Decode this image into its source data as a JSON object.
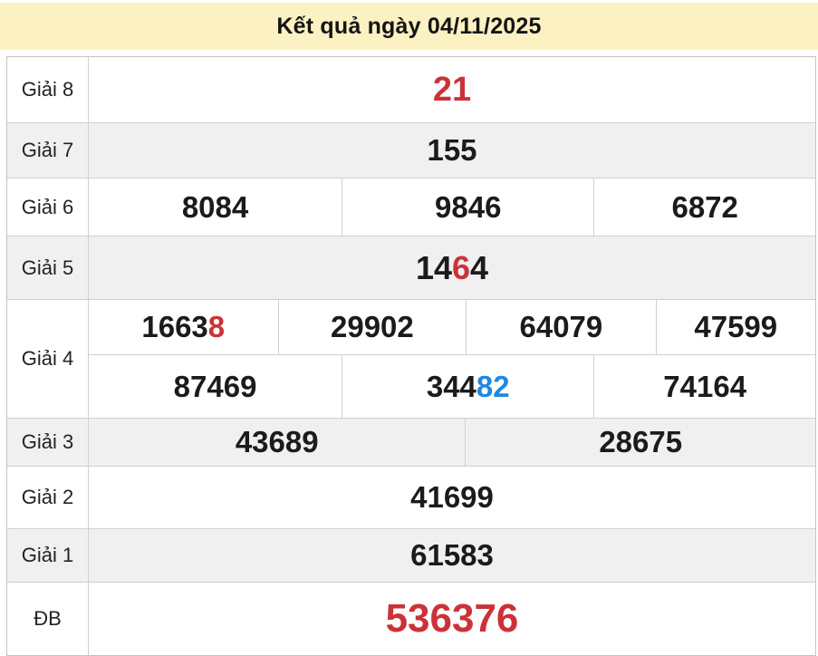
{
  "header": {
    "title": "Kết quả ngày 04/11/2025"
  },
  "colors": {
    "red": "#cb3237",
    "blue": "#1e88e5",
    "black": "#1b1b1b"
  },
  "table": {
    "rows": [
      {
        "label": "Giải 8",
        "shade": "white",
        "size": "xl",
        "cells": [
          [
            {
              "t": "21",
              "c": "red"
            }
          ]
        ]
      },
      {
        "label": "Giải 7",
        "shade": "gray",
        "cells": [
          [
            {
              "t": "155"
            }
          ]
        ]
      },
      {
        "label": "Giải 6",
        "shade": "white",
        "cells": [
          [
            {
              "t": "8084"
            }
          ],
          [
            {
              "t": "9846"
            }
          ],
          [
            {
              "t": "6872"
            }
          ]
        ]
      },
      {
        "label": "Giải 5",
        "shade": "gray",
        "size": "lg",
        "cells": [
          [
            {
              "t": "14"
            },
            {
              "t": "6",
              "c": "red"
            },
            {
              "t": "4"
            }
          ]
        ]
      },
      {
        "label": "Giải 4",
        "shade": "white",
        "subrows": [
          [
            [
              {
                "t": "1663"
              },
              {
                "t": "8",
                "c": "red"
              }
            ],
            [
              {
                "t": "29902"
              }
            ],
            [
              {
                "t": "64079"
              }
            ],
            [
              {
                "t": "47599"
              }
            ]
          ],
          [
            [
              {
                "t": "87469"
              }
            ],
            [
              {
                "t": "344"
              },
              {
                "t": "82",
                "c": "blue"
              }
            ],
            [
              {
                "t": "74164"
              }
            ]
          ]
        ]
      },
      {
        "label": "Giải 3",
        "shade": "gray",
        "cells": [
          [
            {
              "t": "43689"
            }
          ],
          [
            {
              "t": "28675"
            }
          ]
        ]
      },
      {
        "label": "Giải 2",
        "shade": "white",
        "cells": [
          [
            {
              "t": "41699"
            }
          ]
        ]
      },
      {
        "label": "Giải 1",
        "shade": "gray",
        "cells": [
          [
            {
              "t": "61583"
            }
          ]
        ]
      },
      {
        "label": "ĐB",
        "shade": "white",
        "size": "xxl",
        "cells": [
          [
            {
              "t": "536376",
              "c": "red"
            }
          ]
        ]
      }
    ]
  }
}
